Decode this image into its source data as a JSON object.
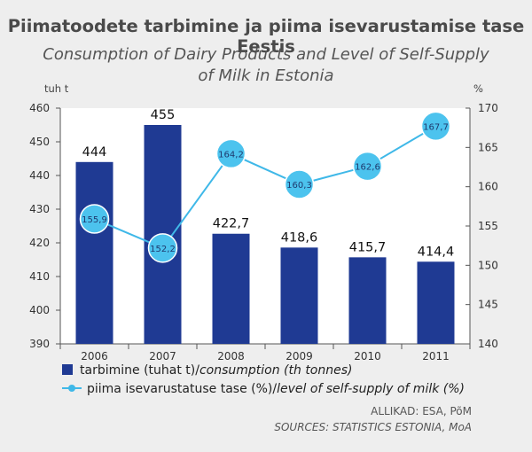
{
  "title": "Piimatoodete tarbimine ja piima isevarustamise tase Eestis",
  "subtitle_line1": "Consumption of Dairy Products and Level of Self-Supply",
  "subtitle_line2": "of Milk in Estonia",
  "left_unit": "tuh t",
  "right_unit": "%",
  "legend": {
    "bars_et": "tarbimine (tuhat t)/",
    "bars_en": "consumption (th tonnes)",
    "line_et": "piima isevarustatuse tase (%)/",
    "line_en": "level of self-supply of milk (%)"
  },
  "sources": {
    "et": "ALLIKAD: ESA, PõM",
    "en": "SOURCES: STATISTICS ESTONIA, MoA"
  },
  "colors": {
    "bar": "#1f3a93",
    "line": "#3fb8e8",
    "marker_fill": "#4cc3ee",
    "marker_text": "#1f3a6e"
  },
  "chart_data": {
    "type": "bar",
    "categories": [
      "2006",
      "2007",
      "2008",
      "2009",
      "2010",
      "2011"
    ],
    "series": [
      {
        "name": "tarbimine (tuhat t)/consumption (th tonnes)",
        "type": "bar",
        "axis": "left",
        "values": [
          444,
          455,
          422.7,
          418.6,
          415.7,
          414.4
        ],
        "labels": [
          "444",
          "455",
          "422,7",
          "418,6",
          "415,7",
          "414,4"
        ]
      },
      {
        "name": "piima isevarustatuse tase (%)/level of self-supply of milk (%)",
        "type": "line",
        "axis": "right",
        "values": [
          155.9,
          152.2,
          164.2,
          160.3,
          162.6,
          167.7
        ],
        "labels": [
          "155,9",
          "152,2",
          "164,2",
          "160,3",
          "162,6",
          "167,7"
        ]
      }
    ],
    "y_left": {
      "lim": [
        390,
        460
      ],
      "ticks": [
        390,
        400,
        410,
        420,
        430,
        440,
        450,
        460
      ]
    },
    "y_right": {
      "lim": [
        140,
        170
      ],
      "ticks": [
        140,
        145,
        150,
        155,
        160,
        165,
        170
      ]
    },
    "grid": false,
    "legend_position": "bottom"
  }
}
